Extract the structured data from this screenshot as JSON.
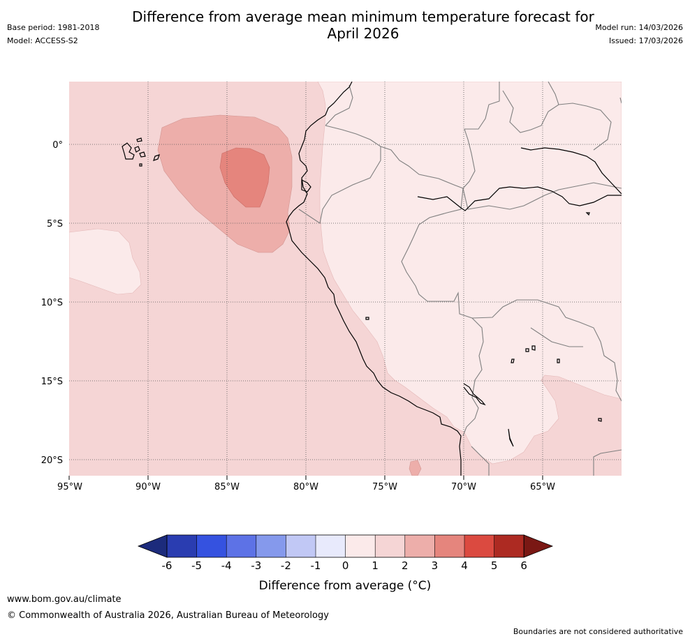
{
  "header": {
    "title_line1": "Difference from average mean minimum temperature forecast for",
    "title_line2": "April 2026",
    "base_period": "Base period: 1981-2018",
    "model": "Model: ACCESS-S2",
    "model_run": "Model run: 14/03/2026",
    "issued": "Issued: 17/03/2026"
  },
  "map": {
    "lon_ticks": [
      "95°W",
      "90°W",
      "85°W",
      "80°W",
      "75°W",
      "70°W",
      "65°W"
    ],
    "lat_ticks": [
      "0°",
      "5°S",
      "10°S",
      "15°S",
      "20°S"
    ],
    "colors": {
      "ocean_fill": "#f5d5d5",
      "land_fill": "#fbeaea",
      "anomaly_2_3": "#edaeaa",
      "anomaly_3_4": "#e5857d",
      "coast": "#000000",
      "border": "#7f7f7f",
      "grid": "#555555"
    }
  },
  "colorbar": {
    "ticks": [
      "-6",
      "-5",
      "-4",
      "-3",
      "-2",
      "-1",
      "0",
      "1",
      "2",
      "3",
      "4",
      "5",
      "6"
    ],
    "label": "Difference from average (°C)",
    "colors": [
      "#1c2b7c",
      "#2a3db1",
      "#3552e0",
      "#5d72e6",
      "#8599ec",
      "#c1c8f5",
      "#e8eafc",
      "#fbeaea",
      "#f5d5d5",
      "#edaeaa",
      "#e5857d",
      "#db4a40",
      "#ad2a22",
      "#7a1814"
    ]
  },
  "footer": {
    "url": "www.bom.gov.au/climate",
    "copyright": "© Commonwealth of Australia 2026, Australian Bureau of Meteorology",
    "disclaimer": "Boundaries are not considered authoritative"
  }
}
